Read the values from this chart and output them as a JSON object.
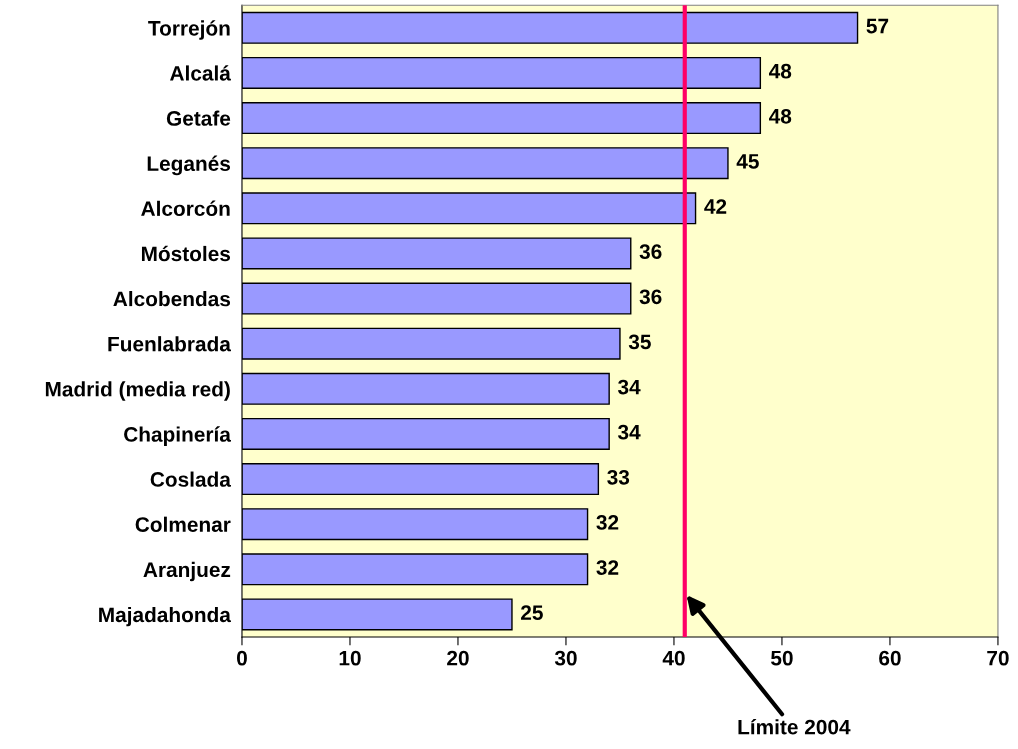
{
  "chart_data": {
    "type": "bar",
    "orientation": "horizontal",
    "categories": [
      "Torrejón",
      "Alcalá",
      "Getafe",
      "Leganés",
      "Alcorcón",
      "Móstoles",
      "Alcobendas",
      "Fuenlabrada",
      "Madrid (media red)",
      "Chapinería",
      "Coslada",
      "Colmenar",
      "Aranjuez",
      "Majadahonda"
    ],
    "values": [
      57,
      48,
      48,
      45,
      42,
      36,
      36,
      35,
      34,
      34,
      33,
      32,
      32,
      25
    ],
    "color": "#9999ff",
    "xlim": [
      0,
      70
    ],
    "xticks": [
      0,
      10,
      20,
      30,
      40,
      50,
      60,
      70
    ],
    "data_labels": true,
    "grid": false,
    "legend": false,
    "ref_lines": [
      {
        "axis": "x",
        "value": 41,
        "label": "Límite 2004",
        "color": "#ff0066"
      }
    ]
  }
}
